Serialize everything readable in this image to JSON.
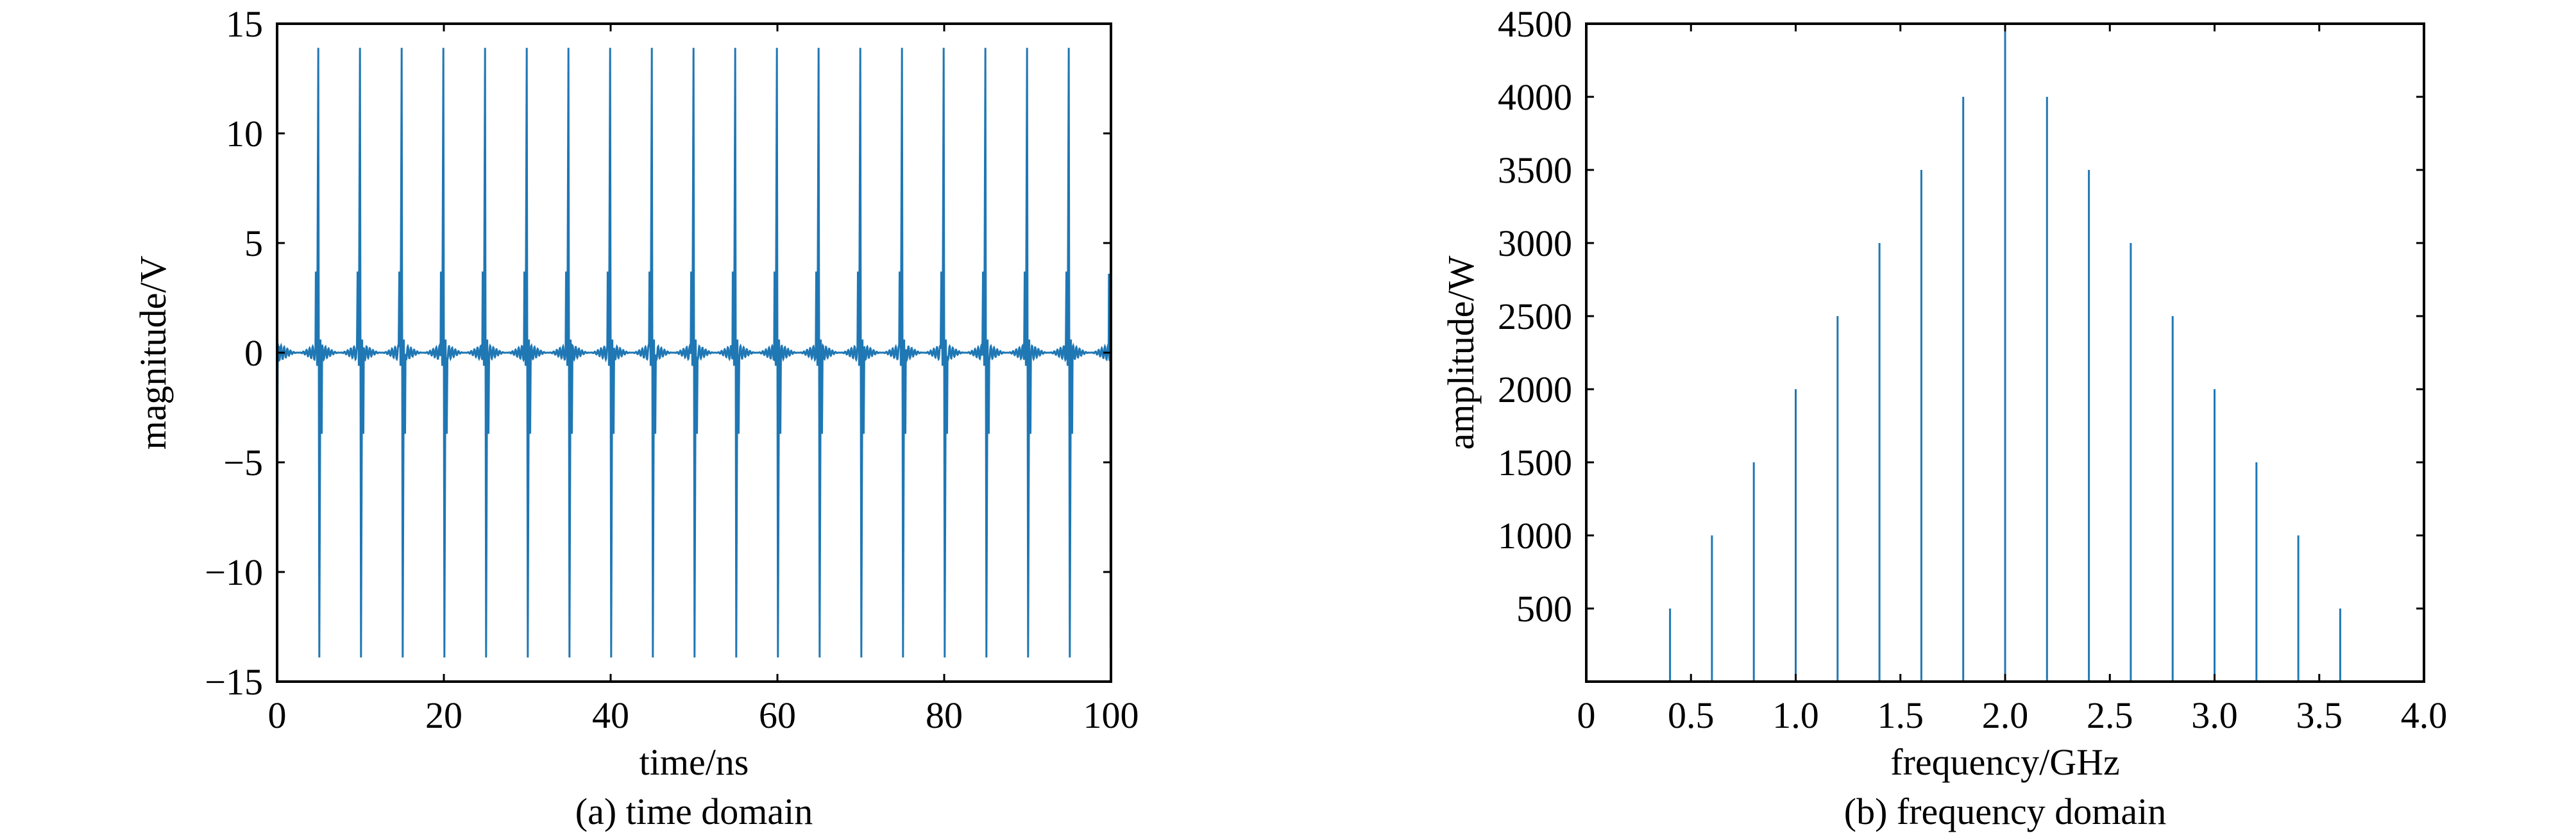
{
  "colors": {
    "series": "#1f77b4",
    "axes": "#000000",
    "background": "#ffffff"
  },
  "chart_data": [
    {
      "type": "line",
      "caption": "(a) time domain",
      "xlabel": "time/ns",
      "ylabel": "magnitude/V",
      "xlim": [
        0,
        100
      ],
      "ylim": [
        -15,
        15
      ],
      "xticks": [
        0,
        20,
        40,
        60,
        80,
        100
      ],
      "xtick_labels": [
        "0",
        "20",
        "40",
        "60",
        "80",
        "100"
      ],
      "yticks": [
        15,
        10,
        5,
        0,
        -5,
        -10,
        -15
      ],
      "ytick_labels": [
        "15",
        "10",
        "5",
        "0",
        "−5",
        "−10",
        "−15"
      ],
      "grid": false,
      "series": [
        {
          "pulse_period_ns": 5,
          "pulse_times_ns": [
            5,
            10,
            15,
            20,
            25,
            30,
            35,
            40,
            45,
            50,
            55,
            60,
            65,
            70,
            75,
            80,
            85,
            90,
            95
          ],
          "peak_positive": 13.9,
          "peak_negative": -13.9,
          "sidelobe": 3.7,
          "ripple": 0.35
        }
      ]
    },
    {
      "type": "bar",
      "caption": "(b) frequency domain",
      "xlabel": "frequency/GHz",
      "ylabel": "amplitude/W",
      "xlim": [
        0,
        4.0
      ],
      "ylim": [
        0,
        4500
      ],
      "xticks": [
        0,
        0.5,
        1.0,
        1.5,
        2.0,
        2.5,
        3.0,
        3.5,
        4.0
      ],
      "xtick_labels": [
        "0",
        "0.5",
        "1.0",
        "1.5",
        "2.0",
        "2.5",
        "3.0",
        "3.5",
        "4.0"
      ],
      "yticks": [
        500,
        1000,
        1500,
        2000,
        2500,
        3000,
        3500,
        4000,
        4500
      ],
      "ytick_labels": [
        "500",
        "1000",
        "1500",
        "2000",
        "2500",
        "3000",
        "3500",
        "4000",
        "4500"
      ],
      "grid": false,
      "x": [
        0.4,
        0.6,
        0.8,
        1.0,
        1.2,
        1.4,
        1.6,
        1.8,
        2.0,
        2.2,
        2.4,
        2.6,
        2.8,
        3.0,
        3.2,
        3.4,
        3.6
      ],
      "values": [
        500,
        1000,
        1500,
        2000,
        2500,
        3000,
        3500,
        4000,
        4500,
        4000,
        3500,
        3000,
        2500,
        2000,
        1500,
        1000,
        500
      ]
    }
  ]
}
